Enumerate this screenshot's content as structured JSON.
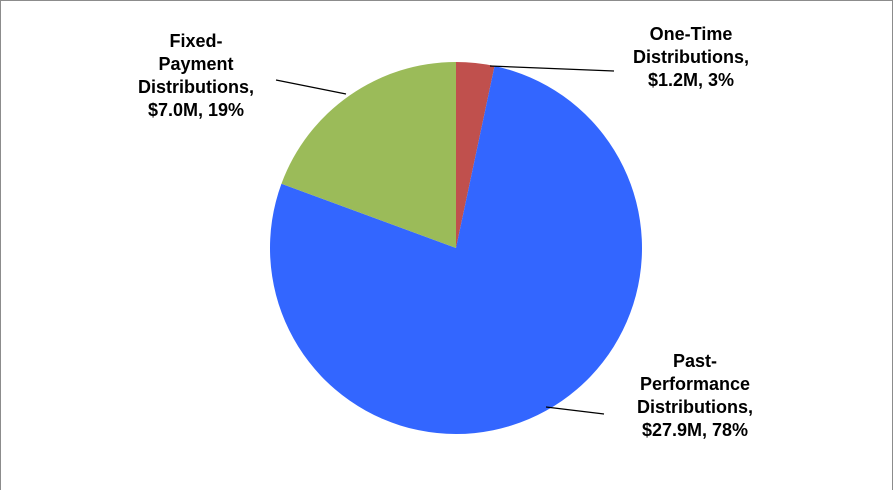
{
  "chart_data": {
    "type": "pie",
    "title": "",
    "slices": [
      {
        "label_lines": [
          "One-Time",
          "Distributions,",
          "$1.2M, 3%"
        ],
        "value": 1.2,
        "percent": 3,
        "color": "#C0504D"
      },
      {
        "label_lines": [
          "Past-",
          "Performance",
          "Distributions,",
          "$27.9M, 78%"
        ],
        "value": 27.9,
        "percent": 78,
        "color": "#3366FF"
      },
      {
        "label_lines": [
          "Fixed-",
          "Payment",
          "Distributions,",
          "$7.0M, 19%"
        ],
        "value": 7.0,
        "percent": 19,
        "color": "#9BBB59"
      }
    ],
    "start_angle": "12 o'clock",
    "direction": "clockwise",
    "legend": "none",
    "label_style": "outside with leader lines"
  }
}
